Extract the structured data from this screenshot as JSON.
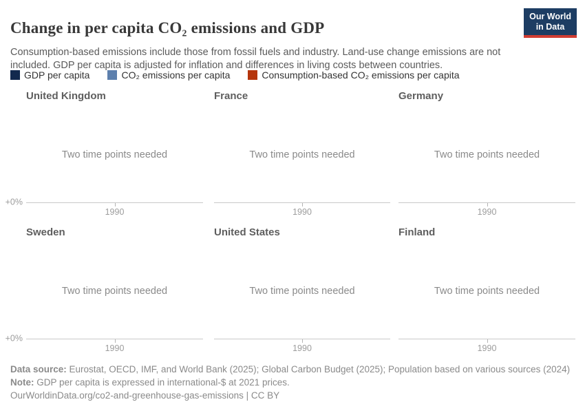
{
  "brand": {
    "logo_line1": "Our World",
    "logo_line2": "in Data",
    "logo_bg": "#1d3d63",
    "logo_accent": "#d13d32"
  },
  "header": {
    "title": "Change in per capita CO₂ emissions and GDP",
    "subtitle": "Consumption-based emissions include those from fossil fuels and industry. Land-use change emissions are not included. GDP per capita is adjusted for inflation and differences in living costs between countries."
  },
  "legend": {
    "items": [
      {
        "label": "GDP per capita",
        "color": "#12294e"
      },
      {
        "label": "CO₂ emissions per capita",
        "color": "#5d80ad"
      },
      {
        "label": "Consumption-based CO₂ emissions per capita",
        "color": "#b5350c"
      }
    ]
  },
  "facets": {
    "placeholder": "Two time points needed",
    "y_axis_label": "+0%",
    "x_tick_label": "1990",
    "panels": [
      {
        "title": "United Kingdom"
      },
      {
        "title": "France"
      },
      {
        "title": "Germany"
      },
      {
        "title": "Sweden"
      },
      {
        "title": "United States"
      },
      {
        "title": "Finland"
      }
    ]
  },
  "chart_data": {
    "type": "line",
    "title": "Change in per capita CO₂ emissions and GDP",
    "facets": [
      "United Kingdom",
      "France",
      "Germany",
      "Sweden",
      "United States",
      "Finland"
    ],
    "series": [
      {
        "name": "GDP per capita",
        "color": "#12294e",
        "values": []
      },
      {
        "name": "CO₂ emissions per capita",
        "color": "#5d80ad",
        "values": []
      },
      {
        "name": "Consumption-based CO₂ emissions per capita",
        "color": "#b5350c",
        "values": []
      }
    ],
    "x_ticks": [
      1990
    ],
    "y_ticks": [
      "+0%"
    ],
    "empty_state_message": "Two time points needed",
    "grid": false,
    "legend_position": "top"
  },
  "footer": {
    "data_source_label": "Data source:",
    "data_source_text": " Eurostat, OECD, IMF, and World Bank (2025); Global Carbon Budget (2025); Population based on various sources (2024)",
    "note_label": "Note:",
    "note_text": " GDP per capita is expressed in international-$ at 2021 prices.",
    "citation": "OurWorldinData.org/co2-and-greenhouse-gas-emissions | CC BY"
  }
}
